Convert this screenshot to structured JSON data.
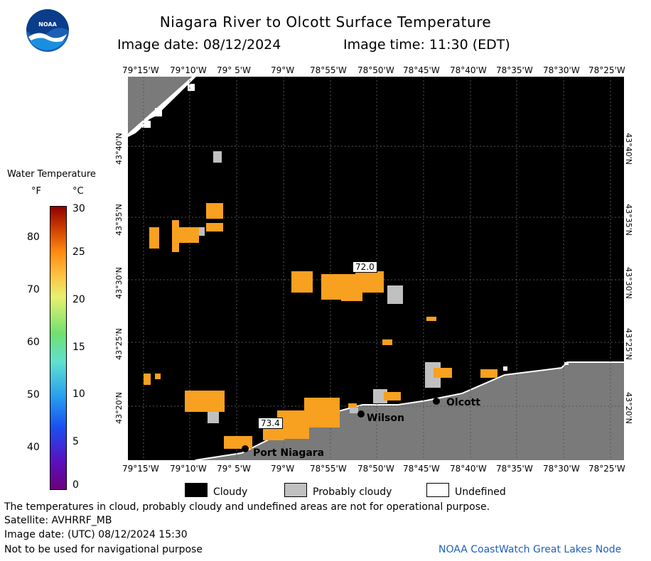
{
  "header": {
    "title": "Niagara River to Olcott Surface Temperature",
    "image_date_label": "Image date: 08/12/2024",
    "image_time_label": "Image time: 11:30 (EDT)"
  },
  "logo": {
    "text": "NOAA"
  },
  "lon_ticks": [
    "79°15'W",
    "79°10'W",
    "79° 5'W",
    "79°W",
    "78°55'W",
    "78°50'W",
    "78°45'W",
    "78°40'W",
    "78°35'W",
    "78°30'W",
    "78°25'W"
  ],
  "lat_ticks": [
    "43°40'N",
    "43°35'N",
    "43°30'N",
    "43°25'N",
    "43°20'N"
  ],
  "colorbar": {
    "title": "Water Temperature",
    "unit_f": "°F",
    "unit_c": "°C",
    "f_ticks": [
      "80",
      "70",
      "60",
      "50",
      "40"
    ],
    "c_ticks": [
      "30",
      "25",
      "20",
      "15",
      "10",
      "5",
      "0"
    ]
  },
  "map": {
    "places": [
      {
        "name": "Olcott"
      },
      {
        "name": "Wilson"
      },
      {
        "name": "Port Niagara"
      }
    ],
    "value_labels": [
      "72.0",
      "73.4"
    ],
    "colors": {
      "cloudy": "#000000",
      "land": "#7a7a7a",
      "probably_cloudy": "#c0c0c0",
      "undefined": "#ffffff",
      "warm_water": "#f8a020"
    }
  },
  "legend": {
    "cloudy": "Cloudy",
    "probably_cloudy": "Probably cloudy",
    "undefined": "Undefined"
  },
  "footer": {
    "line1": "The temperatures in cloud, probably cloudy and undefined areas are not for operational purpose.",
    "line2": "Satellite: AVHRRF_MB",
    "line3": "Image date: (UTC) 08/12/2024  15:30",
    "line4": "Not to be used for navigational purpose",
    "credit": "NOAA CoastWatch Great Lakes Node"
  }
}
